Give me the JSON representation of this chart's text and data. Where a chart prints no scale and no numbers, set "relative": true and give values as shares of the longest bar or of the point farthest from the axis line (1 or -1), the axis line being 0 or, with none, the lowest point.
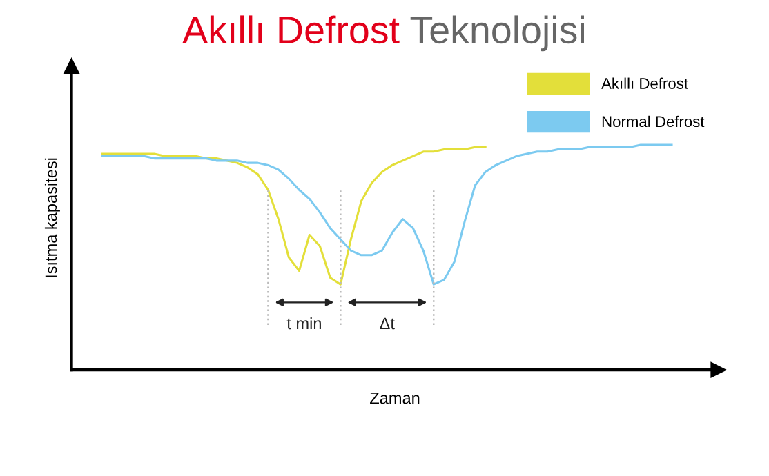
{
  "chart_data": {
    "type": "line",
    "title": "Akıllı Defrost Teknolojisi",
    "xlabel": "Zaman",
    "ylabel": "Isıtma kapasitesi",
    "relative": true,
    "legend": "top right",
    "categories": [
      null,
      null,
      null,
      null,
      null,
      null,
      null,
      null,
      null,
      null,
      null,
      null,
      null,
      null,
      null,
      null,
      null,
      null,
      null,
      null,
      null,
      null,
      null,
      null,
      null,
      null,
      null,
      null,
      null,
      null,
      null,
      null,
      null,
      null,
      null,
      null,
      null,
      null,
      null,
      null,
      null,
      null,
      null,
      null,
      null,
      null,
      null,
      null,
      null,
      null,
      null,
      null,
      null,
      null,
      null,
      null
    ],
    "series": [
      {
        "name": "Akıllı Defrost",
        "color": "#e3df3a",
        "values": [
          0.96,
          0.96,
          0.96,
          0.96,
          0.96,
          0.96,
          0.95,
          0.95,
          0.95,
          0.95,
          0.94,
          0.94,
          0.93,
          0.92,
          0.9,
          0.87,
          0.8,
          0.67,
          0.5,
          0.44,
          0.6,
          0.55,
          0.41,
          0.38,
          0.58,
          0.75,
          0.83,
          0.88,
          0.91,
          0.93,
          0.95,
          0.97,
          0.97,
          0.98,
          0.98,
          0.98,
          0.99,
          0.99,
          null,
          null,
          null,
          null,
          null,
          null,
          null,
          null,
          null,
          null,
          null,
          null,
          null,
          null,
          null,
          null,
          null,
          null
        ]
      },
      {
        "name": "Normal Defrost",
        "color": "#7ccaf0",
        "values": [
          0.95,
          0.95,
          0.95,
          0.95,
          0.95,
          0.94,
          0.94,
          0.94,
          0.94,
          0.94,
          0.94,
          0.93,
          0.93,
          0.93,
          0.92,
          0.92,
          0.91,
          0.89,
          0.85,
          0.8,
          0.76,
          0.7,
          0.63,
          0.58,
          0.53,
          0.51,
          0.51,
          0.53,
          0.61,
          0.67,
          0.63,
          0.53,
          0.38,
          0.4,
          0.48,
          0.66,
          0.82,
          0.88,
          0.91,
          0.93,
          0.95,
          0.96,
          0.97,
          0.97,
          0.98,
          0.98,
          0.98,
          0.99,
          0.99,
          0.99,
          0.99,
          0.99,
          1.0,
          1.0,
          1.0,
          1.0
        ]
      }
    ],
    "annotations": [
      "t min",
      "Δt"
    ]
  }
}
